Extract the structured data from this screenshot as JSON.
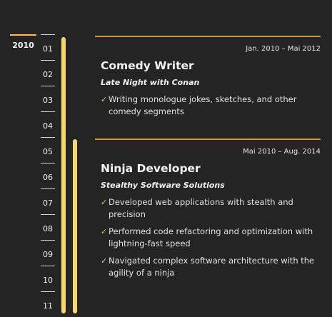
{
  "timeline": {
    "year": "2010",
    "months": [
      "01",
      "02",
      "03",
      "04",
      "05",
      "06",
      "07",
      "08",
      "09",
      "10",
      "11"
    ],
    "accent_color": "#f7d774",
    "rule_color": "#c9963e"
  },
  "entries": [
    {
      "date_range": "Jan. 2010 – Mai 2012",
      "title": "Comedy Writer",
      "company": "Late Night with Conan",
      "bullets": [
        "Writing monologue jokes, sketches, and other comedy segments"
      ]
    },
    {
      "date_range": "Mai 2010 – Aug. 2014",
      "title": "Ninja Developer",
      "company": "Stealthy Software Solutions",
      "bullets": [
        "Developed web applications with stealth and precision",
        "Performed code refactoring and optimization with lightning-fast speed",
        "Navigated complex software architecture with the agility of a ninja"
      ]
    }
  ],
  "icons": {
    "bullet": "check-icon"
  }
}
